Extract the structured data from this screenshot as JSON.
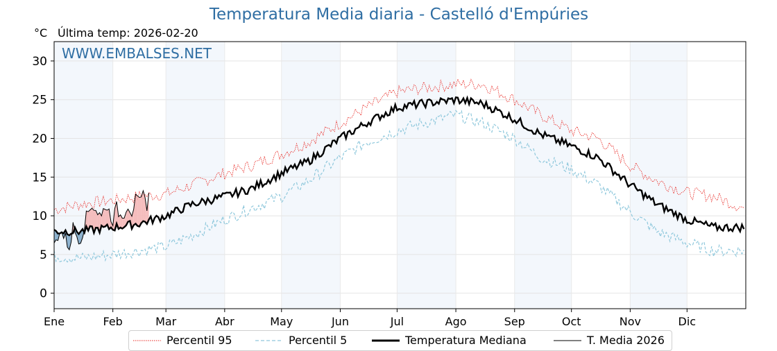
{
  "chart_data": {
    "type": "line",
    "title": "Temperatura Media diaria - Castelló d'Empúries",
    "unit_label": "°C",
    "last_temp_label": "Última temp: 2026-02-20",
    "watermark": "WWW.EMBALSES.NET",
    "x_axis": {
      "type": "day-of-year",
      "months": [
        "Ene",
        "Feb",
        "Mar",
        "Abr",
        "May",
        "Jun",
        "Jul",
        "Ago",
        "Sep",
        "Oct",
        "Nov",
        "Dic"
      ]
    },
    "ylim": [
      -2,
      32.5
    ],
    "yticks": [
      0,
      5,
      10,
      15,
      20,
      25,
      30
    ],
    "grid": true,
    "legend_position": "bottom",
    "series": [
      {
        "name": "Percentil 95",
        "color": "#e8231e",
        "style": "dotted",
        "sample_days": [
          1,
          15,
          32,
          46,
          60,
          74,
          91,
          105,
          121,
          135,
          152,
          166,
          182,
          196,
          213,
          227,
          244,
          258,
          274,
          288,
          305,
          319,
          335,
          349,
          365
        ],
        "values": [
          10.8,
          11.5,
          12.0,
          12.5,
          12.8,
          14.0,
          15.5,
          16.5,
          18.0,
          19.5,
          22.0,
          24.0,
          26.0,
          26.5,
          27.0,
          27.0,
          25.0,
          23.0,
          21.0,
          20.0,
          16.5,
          14.5,
          13.0,
          12.5,
          11.0
        ]
      },
      {
        "name": "Percentil 5",
        "color": "#8fc8dc",
        "style": "dashed",
        "sample_days": [
          1,
          15,
          32,
          46,
          60,
          74,
          91,
          105,
          121,
          135,
          152,
          166,
          182,
          196,
          213,
          227,
          244,
          258,
          274,
          288,
          305,
          319,
          335,
          349,
          365
        ],
        "values": [
          4.8,
          4.5,
          5.0,
          5.5,
          6.0,
          7.5,
          9.5,
          11.0,
          12.5,
          14.5,
          17.5,
          19.5,
          21.0,
          22.0,
          23.0,
          22.0,
          20.0,
          17.5,
          16.0,
          14.0,
          10.5,
          8.0,
          6.5,
          5.5,
          5.5
        ]
      },
      {
        "name": "Temperatura Mediana",
        "color": "#000000",
        "style": "bold",
        "sample_days": [
          1,
          15,
          32,
          46,
          60,
          74,
          91,
          105,
          121,
          135,
          152,
          166,
          182,
          196,
          213,
          227,
          244,
          258,
          274,
          288,
          305,
          319,
          335,
          349,
          365
        ],
        "values": [
          8.0,
          8.0,
          8.5,
          9.0,
          10.0,
          11.5,
          12.5,
          13.5,
          15.5,
          17.0,
          20.0,
          22.0,
          24.0,
          24.5,
          25.0,
          24.5,
          22.5,
          20.5,
          19.0,
          17.5,
          14.0,
          11.5,
          9.5,
          8.5,
          8.5
        ]
      },
      {
        "name": "T. Media 2026",
        "color": "#000000",
        "style": "thin",
        "days": [
          1,
          4,
          7,
          9,
          11,
          13,
          15,
          17,
          19,
          21,
          24,
          26,
          28,
          30,
          32,
          34,
          36,
          38,
          40,
          42,
          44,
          46,
          48,
          50,
          51
        ],
        "values": [
          6.0,
          8.2,
          7.0,
          6.0,
          8.5,
          7.5,
          7.0,
          9.0,
          10.5,
          11.5,
          10.5,
          9.8,
          11.5,
          10.5,
          9.5,
          11.0,
          10.0,
          10.5,
          11.5,
          10.5,
          12.0,
          11.5,
          12.5,
          11.5,
          13.0
        ]
      }
    ]
  }
}
